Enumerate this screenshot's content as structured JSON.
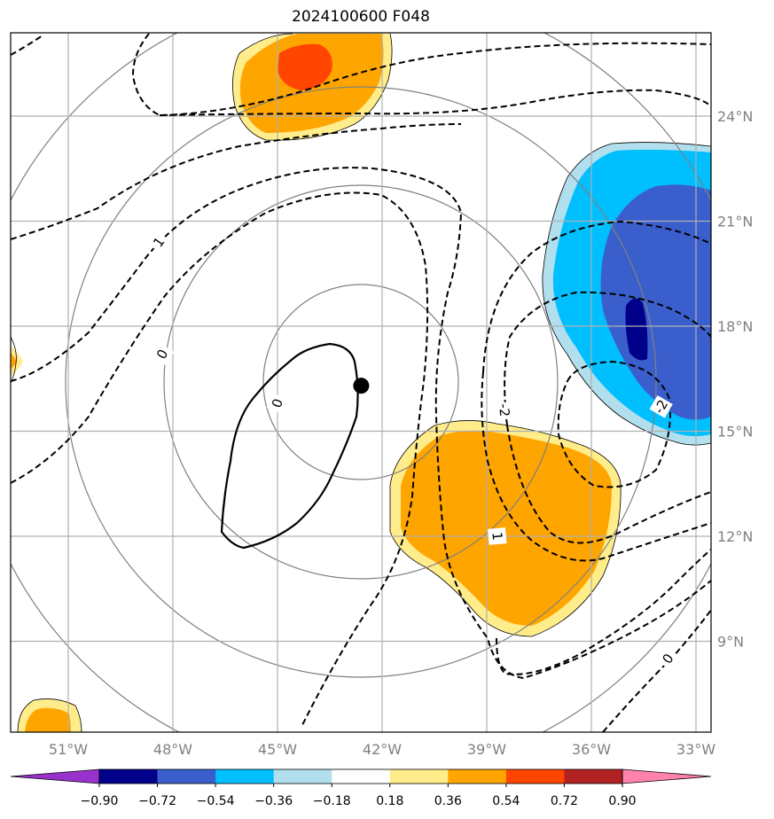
{
  "title": "2024100600 F048",
  "map": {
    "lon_labels": [
      "51°W",
      "48°W",
      "45°W",
      "42°W",
      "39°W",
      "36°W",
      "33°W"
    ],
    "lat_labels": [
      "24°N",
      "21°N",
      "18°N",
      "15°N",
      "12°N",
      "9°N"
    ],
    "storm_center_lon": -42.6,
    "storm_center_lat": 16.3,
    "contour_labels": [
      {
        "text": "1",
        "lon": -48.4,
        "lat": 20.4,
        "rot": -55
      },
      {
        "text": "0",
        "lon": -48.3,
        "lat": 17.2,
        "rot": -60
      },
      {
        "text": "0",
        "lon": -45.0,
        "lat": 15.8,
        "rot": -70
      },
      {
        "text": "-2",
        "lon": -38.5,
        "lat": 15.6,
        "rot": 85
      },
      {
        "text": "1",
        "lon": -38.7,
        "lat": 12.0,
        "rot": 85
      },
      {
        "text": "-2",
        "lon": -34.0,
        "lat": 15.7,
        "rot": -60
      },
      {
        "text": "0",
        "lon": -33.8,
        "lat": 8.5,
        "rot": -55
      }
    ]
  },
  "colorbar": {
    "colors": [
      "#9932cc",
      "#00008b",
      "#3a5fcd",
      "#00bfff",
      "#b2dfee",
      "#ffffff",
      "#ffec8b",
      "#ffa500",
      "#ff4500",
      "#b22222",
      "#ff82ab"
    ],
    "labels": [
      "−0.90",
      "−0.72",
      "−0.54",
      "−0.36",
      "−0.18",
      "0.18",
      "0.36",
      "0.54",
      "0.72",
      "0.90"
    ]
  }
}
